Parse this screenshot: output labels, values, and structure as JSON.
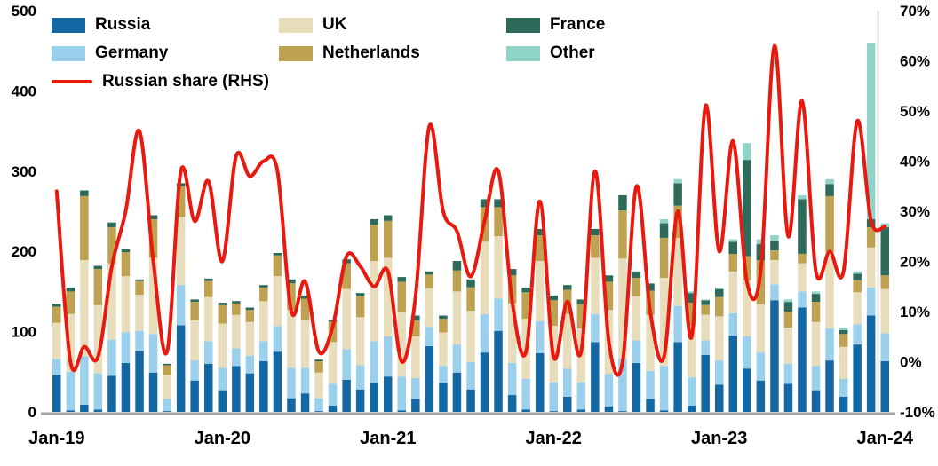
{
  "chart_data": {
    "type": "bar",
    "subtype": "stacked-bar-with-line",
    "title": "",
    "x_axis": {
      "tick_labels": [
        "Jan-19",
        "Jan-20",
        "Jan-21",
        "Jan-22",
        "Jan-23",
        "Jan-24"
      ],
      "tick_month_indices": [
        0,
        12,
        24,
        36,
        48,
        60
      ],
      "frequency": "monthly"
    },
    "left_axis": {
      "min": 0,
      "max": 500,
      "ticks": [
        0,
        100,
        200,
        300,
        400,
        500
      ],
      "tick_labels": [
        "0",
        "100",
        "200",
        "300",
        "400",
        "500"
      ]
    },
    "right_axis": {
      "min": -10,
      "max": 70,
      "ticks": [
        -10,
        0,
        10,
        20,
        30,
        40,
        50,
        60,
        70
      ],
      "tick_labels": [
        "-10%",
        "0%",
        "10%",
        "20%",
        "30%",
        "40%",
        "50%",
        "60%",
        "70%"
      ]
    },
    "series": [
      {
        "name": "Russia",
        "color": "#1368a4",
        "values": [
          46,
          2,
          9,
          3,
          45,
          61,
          76,
          49,
          1,
          108,
          39,
          60,
          27,
          57,
          48,
          63,
          75,
          17,
          23,
          1,
          8,
          40,
          28,
          36,
          44,
          2,
          16,
          82,
          36,
          49,
          28,
          74,
          101,
          21,
          3,
          73,
          1,
          19,
          3,
          87,
          7,
          1,
          61,
          16,
          2,
          87,
          8,
          71,
          34,
          95,
          54,
          39,
          139,
          35,
          130,
          27,
          64,
          19,
          84,
          120,
          63
        ]
      },
      {
        "name": "Germany",
        "color": "#9ad0ec",
        "values": [
          20,
          48,
          60,
          45,
          45,
          38,
          25,
          48,
          15,
          50,
          25,
          28,
          28,
          22,
          22,
          25,
          32,
          38,
          32,
          16,
          27,
          38,
          30,
          52,
          50,
          42,
          26,
          24,
          21,
          35,
          34,
          48,
          40,
          40,
          38,
          40,
          36,
          35,
          34,
          35,
          40,
          65,
          28,
          35,
          55,
          45,
          35,
          18,
          30,
          28,
          40,
          35,
          20,
          25,
          20,
          30,
          40,
          22,
          25,
          35,
          35
        ]
      },
      {
        "name": "UK",
        "color": "#e8ddbb",
        "values": [
          45,
          72,
          120,
          85,
          95,
          70,
          45,
          95,
          30,
          85,
          50,
          55,
          55,
          42,
          42,
          50,
          62,
          72,
          60,
          32,
          52,
          75,
          60,
          100,
          98,
          80,
          52,
          48,
          42,
          66,
          64,
          90,
          78,
          74,
          75,
          75,
          70,
          68,
          67,
          70,
          80,
          125,
          55,
          70,
          110,
          85,
          65,
          32,
          55,
          52,
          70,
          60,
          30,
          45,
          35,
          55,
          95,
          40,
          40,
          50,
          55
        ]
      },
      {
        "name": "Netherlands",
        "color": "#bfa251",
        "values": [
          20,
          28,
          80,
          45,
          45,
          30,
          17,
          48,
          12,
          38,
          23,
          20,
          23,
          14,
          15,
          17,
          26,
          33,
          26,
          14,
          25,
          32,
          26,
          45,
          46,
          38,
          20,
          17,
          17,
          26,
          29,
          43,
          36,
          35,
          33,
          32,
          32,
          30,
          30,
          28,
          35,
          60,
          23,
          30,
          50,
          40,
          28,
          12,
          24,
          22,
          30,
          55,
          12,
          20,
          12,
          25,
          70,
          16,
          15,
          25,
          17
        ]
      },
      {
        "name": "France",
        "color": "#2d6a5a",
        "values": [
          4,
          5,
          7,
          4,
          6,
          4,
          2,
          5,
          2,
          4,
          3,
          3,
          3,
          3,
          3,
          3,
          3,
          5,
          4,
          2,
          3,
          5,
          4,
          7,
          7,
          6,
          6,
          4,
          4,
          12,
          10,
          10,
          10,
          8,
          6,
          8,
          6,
          6,
          6,
          8,
          8,
          19,
          8,
          9,
          18,
          28,
          12,
          6,
          10,
          15,
          120,
          20,
          12,
          12,
          68,
          10,
          15,
          5,
          8,
          10,
          60
        ]
      },
      {
        "name": "Other",
        "color": "#8fd4c6",
        "values": [
          0,
          0,
          0,
          0,
          0,
          0,
          0,
          0,
          0,
          0,
          0,
          0,
          0,
          0,
          0,
          0,
          0,
          0,
          0,
          0,
          0,
          0,
          0,
          0,
          0,
          0,
          0,
          0,
          0,
          0,
          0,
          0,
          0,
          0,
          0,
          0,
          0,
          0,
          0,
          0,
          0,
          0,
          0,
          0,
          5,
          5,
          2,
          1,
          2,
          3,
          21,
          6,
          7,
          3,
          5,
          3,
          6,
          3,
          3,
          220,
          5
        ]
      }
    ],
    "line": {
      "name": "Russian share (RHS)",
      "axis": "right",
      "color": "#e8190f",
      "values": [
        34,
        0,
        3,
        1,
        19,
        30,
        46,
        20,
        2,
        38,
        28,
        36,
        20,
        41,
        37,
        40,
        38,
        10,
        16,
        2,
        7,
        21,
        19,
        15,
        18,
        0,
        13,
        47,
        30,
        26,
        17,
        28,
        38,
        12,
        2,
        32,
        1,
        12,
        2,
        38,
        4,
        0,
        35,
        10,
        1,
        30,
        5,
        51,
        22,
        44,
        16,
        18,
        63,
        25,
        52,
        18,
        22,
        18,
        48,
        28,
        27
      ]
    },
    "legend": {
      "items": [
        {
          "label": "Russia",
          "swatch": "#1368a4",
          "type": "box"
        },
        {
          "label": "UK",
          "swatch": "#e8ddbb",
          "type": "box"
        },
        {
          "label": "France",
          "swatch": "#2d6a5a",
          "type": "box"
        },
        {
          "label": "Germany",
          "swatch": "#9ad0ec",
          "type": "box"
        },
        {
          "label": "Netherlands",
          "swatch": "#bfa251",
          "type": "box"
        },
        {
          "label": "Other",
          "swatch": "#8fd4c6",
          "type": "box"
        },
        {
          "label": "Russian share (RHS)",
          "swatch": "#e8190f",
          "type": "line"
        }
      ]
    },
    "style": {
      "baseline_color": "#a6a6a6",
      "right_gridline_color": "#d9d9d9"
    }
  }
}
